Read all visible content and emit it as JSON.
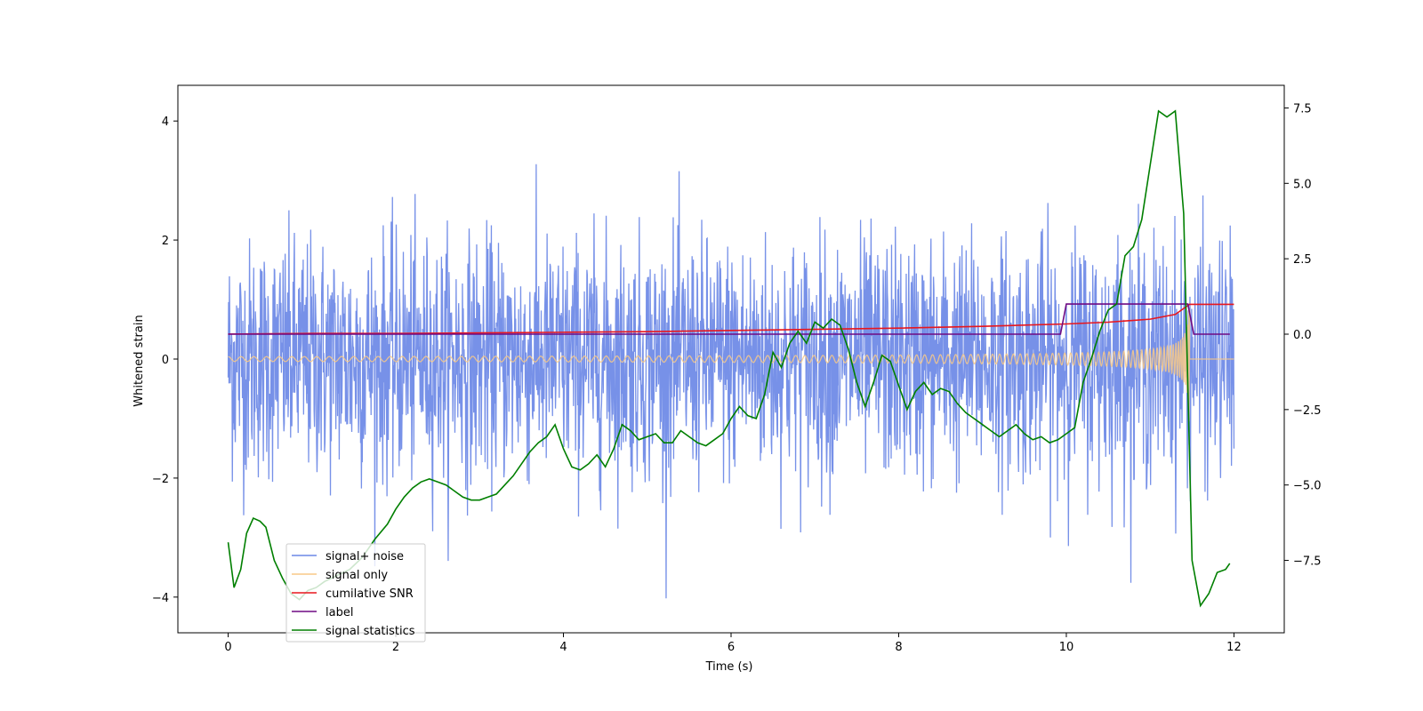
{
  "chart_data": {
    "type": "line",
    "title": "",
    "xlabel": "Time (s)",
    "ylabel": "Whitened strain",
    "y2label": "",
    "xlim": [
      -0.6,
      12.6
    ],
    "ylim": [
      -4.6,
      4.6
    ],
    "y2lim": [
      -9.9,
      8.25
    ],
    "xticks": [
      0,
      2,
      4,
      6,
      8,
      10,
      12
    ],
    "yticks": [
      -4,
      -2,
      0,
      2,
      4
    ],
    "y2ticks": [
      -7.5,
      -5.0,
      -2.5,
      0.0,
      2.5,
      5.0,
      7.5
    ],
    "grid": false,
    "legend_position": "lower-left",
    "colors": {
      "noise": "#6b88e6",
      "signal": "#f8c987",
      "snr": "#e8161d",
      "label": "#6f0a83",
      "stats": "#007f00"
    },
    "series": [
      {
        "name": "signal+ noise",
        "axis": "left",
        "kind": "noise",
        "x_range": [
          0,
          12
        ],
        "envelope": {
          "lower": -2.2,
          "upper": 2.3,
          "peak_min": -4.15,
          "peak_max": 4.15
        }
      },
      {
        "name": "signal only",
        "axis": "left",
        "kind": "chirp",
        "x_range": [
          0,
          11.47
        ],
        "amplitude_start": 0.04,
        "amplitude_end": 3.0,
        "after_merger_value": 0.0,
        "x_end_line": 12
      },
      {
        "name": "cumilative SNR",
        "axis": "left",
        "x": [
          0,
          1,
          2,
          3,
          4,
          5,
          6,
          7,
          8,
          9,
          10,
          10.5,
          11,
          11.3,
          11.47,
          12
        ],
        "y": [
          0.42,
          0.43,
          0.43,
          0.44,
          0.45,
          0.46,
          0.48,
          0.5,
          0.52,
          0.55,
          0.59,
          0.62,
          0.67,
          0.75,
          0.92,
          0.92
        ]
      },
      {
        "name": "label",
        "axis": "right",
        "x": [
          0,
          9.93,
          10.0,
          11.45,
          11.52,
          11.95
        ],
        "y": [
          0,
          0,
          1,
          1,
          0,
          0
        ]
      },
      {
        "name": "signal statistics",
        "axis": "right",
        "x": [
          0,
          0.07,
          0.15,
          0.22,
          0.3,
          0.38,
          0.45,
          0.55,
          0.65,
          0.75,
          0.85,
          0.95,
          1.05,
          1.15,
          1.3,
          1.45,
          1.6,
          1.75,
          1.9,
          2.0,
          2.1,
          2.2,
          2.3,
          2.4,
          2.5,
          2.6,
          2.7,
          2.8,
          2.9,
          3.0,
          3.1,
          3.2,
          3.3,
          3.4,
          3.5,
          3.6,
          3.7,
          3.8,
          3.9,
          4.0,
          4.1,
          4.2,
          4.3,
          4.4,
          4.5,
          4.6,
          4.7,
          4.8,
          4.9,
          5.0,
          5.1,
          5.2,
          5.3,
          5.4,
          5.5,
          5.6,
          5.7,
          5.8,
          5.9,
          6.0,
          6.1,
          6.2,
          6.3,
          6.4,
          6.5,
          6.6,
          6.7,
          6.8,
          6.9,
          7.0,
          7.1,
          7.2,
          7.3,
          7.4,
          7.5,
          7.6,
          7.7,
          7.8,
          7.9,
          8.0,
          8.1,
          8.2,
          8.3,
          8.4,
          8.5,
          8.6,
          8.7,
          8.8,
          8.9,
          9.0,
          9.1,
          9.2,
          9.3,
          9.4,
          9.5,
          9.6,
          9.7,
          9.8,
          9.9,
          10.0,
          10.1,
          10.2,
          10.3,
          10.4,
          10.5,
          10.6,
          10.7,
          10.8,
          10.9,
          11.0,
          11.1,
          11.2,
          11.3,
          11.4,
          11.5,
          11.6,
          11.7,
          11.8,
          11.9,
          11.95
        ],
        "y": [
          -6.9,
          -8.4,
          -7.8,
          -6.6,
          -6.1,
          -6.2,
          -6.4,
          -7.5,
          -8.1,
          -8.6,
          -8.8,
          -8.5,
          -8.4,
          -8.2,
          -8.0,
          -7.8,
          -7.4,
          -6.8,
          -6.3,
          -5.8,
          -5.4,
          -5.1,
          -4.9,
          -4.8,
          -4.9,
          -5.0,
          -5.2,
          -5.4,
          -5.5,
          -5.5,
          -5.4,
          -5.3,
          -5.0,
          -4.7,
          -4.3,
          -3.9,
          -3.6,
          -3.4,
          -3.0,
          -3.8,
          -4.4,
          -4.5,
          -4.3,
          -4.0,
          -4.4,
          -3.8,
          -3.0,
          -3.2,
          -3.5,
          -3.4,
          -3.3,
          -3.6,
          -3.6,
          -3.2,
          -3.4,
          -3.6,
          -3.7,
          -3.5,
          -3.3,
          -2.8,
          -2.4,
          -2.7,
          -2.8,
          -2.0,
          -0.6,
          -1.1,
          -0.3,
          0.1,
          -0.3,
          0.4,
          0.2,
          0.5,
          0.3,
          -0.5,
          -1.6,
          -2.4,
          -1.6,
          -0.7,
          -0.9,
          -1.7,
          -2.5,
          -1.9,
          -1.6,
          -2.0,
          -1.8,
          -1.9,
          -2.3,
          -2.6,
          -2.8,
          -3.0,
          -3.2,
          -3.4,
          -3.2,
          -3.0,
          -3.3,
          -3.5,
          -3.4,
          -3.6,
          -3.5,
          -3.3,
          -3.1,
          -1.6,
          -0.8,
          0.1,
          0.8,
          1.0,
          2.6,
          2.9,
          3.8,
          5.6,
          7.4,
          7.2,
          7.4,
          4.0,
          -7.5,
          -9.0,
          -8.6,
          -7.9,
          -7.8,
          -7.6
        ]
      }
    ]
  }
}
